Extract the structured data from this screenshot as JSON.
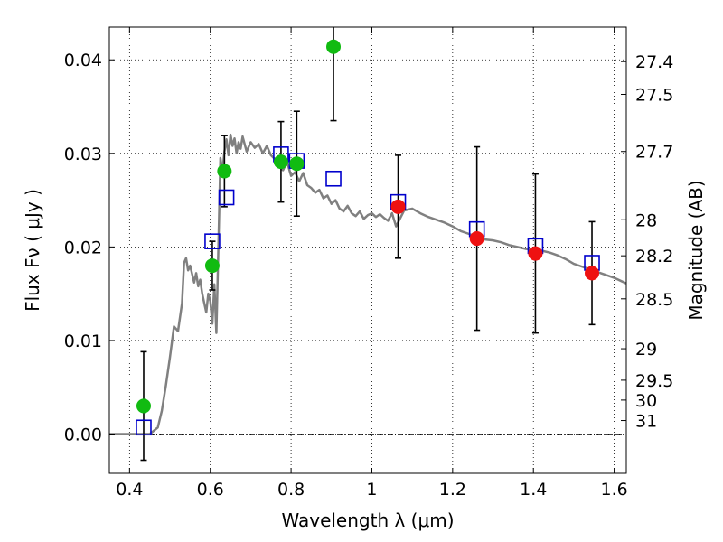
{
  "chart_data": {
    "type": "scatter",
    "xlabel": "Wavelength  λ (μm)",
    "ylabel": "Flux  Fν  ( μJy )",
    "ylabel_right": "Magnitude (AB)",
    "xlim": [
      0.35,
      1.63
    ],
    "ylim": [
      -0.0042,
      0.0435
    ],
    "x_ticks": [
      0.4,
      0.6,
      0.8,
      1.0,
      1.2,
      1.4,
      1.6
    ],
    "x_tick_labels": [
      "0.4",
      "0.6",
      "0.8",
      "1",
      "1.2",
      "1.4",
      "1.6"
    ],
    "y_ticks": [
      0.0,
      0.01,
      0.02,
      0.03,
      0.04
    ],
    "y_tick_labels": [
      "0.00",
      "0.01",
      "0.02",
      "0.03",
      "0.04"
    ],
    "right_ticks": [
      {
        "label": "27.4",
        "mag": 27.4
      },
      {
        "label": "27.5",
        "mag": 27.5
      },
      {
        "label": "27.7",
        "mag": 27.7
      },
      {
        "label": "28",
        "mag": 28.0
      },
      {
        "label": "28.2",
        "mag": 28.2
      },
      {
        "label": "28.5",
        "mag": 28.5
      },
      {
        "label": "29",
        "mag": 29.0
      },
      {
        "label": "29.5",
        "mag": 29.5
      },
      {
        "label": "30",
        "mag": 30.0
      },
      {
        "label": "31",
        "mag": 31.0
      }
    ],
    "grid": true,
    "zero_line": true,
    "colors": {
      "green": "#11bb11",
      "red": "#ee1111",
      "blue": "#0000cc",
      "model": "#808080",
      "errorbar": "#000000"
    },
    "series": [
      {
        "marker": "circle-green",
        "points": [
          {
            "x": 0.435,
            "y": 0.003,
            "yerr_low": 0.0058,
            "yerr_high": 0.0058
          },
          {
            "x": 0.605,
            "y": 0.018,
            "yerr_low": 0.0026,
            "yerr_high": 0.0026
          },
          {
            "x": 0.635,
            "y": 0.0281,
            "yerr_low": 0.0038,
            "yerr_high": 0.0038
          },
          {
            "x": 0.775,
            "y": 0.0291,
            "yerr_low": 0.0043,
            "yerr_high": 0.0043
          },
          {
            "x": 0.814,
            "y": 0.0289,
            "yerr_low": 0.0056,
            "yerr_high": 0.0056
          },
          {
            "x": 0.905,
            "y": 0.0414,
            "yerr_low": 0.0079,
            "yerr_high": 0.0079
          }
        ]
      },
      {
        "marker": "circle-red",
        "points": [
          {
            "x": 1.065,
            "y": 0.0243,
            "yerr_low": 0.0055,
            "yerr_high": 0.0055
          },
          {
            "x": 1.26,
            "y": 0.0209,
            "yerr_low": 0.0098,
            "yerr_high": 0.0098
          },
          {
            "x": 1.405,
            "y": 0.0193,
            "yerr_low": 0.0085,
            "yerr_high": 0.0085
          },
          {
            "x": 1.545,
            "y": 0.0172,
            "yerr_low": 0.0055,
            "yerr_high": 0.0055
          }
        ]
      },
      {
        "marker": "square-blue",
        "points": [
          {
            "x": 0.435,
            "y": 0.0007
          },
          {
            "x": 0.605,
            "y": 0.0206
          },
          {
            "x": 0.64,
            "y": 0.0253
          },
          {
            "x": 0.775,
            "y": 0.0299
          },
          {
            "x": 0.814,
            "y": 0.0292
          },
          {
            "x": 0.905,
            "y": 0.0273
          },
          {
            "x": 1.065,
            "y": 0.0248
          },
          {
            "x": 1.26,
            "y": 0.0219
          },
          {
            "x": 1.405,
            "y": 0.0201
          },
          {
            "x": 1.545,
            "y": 0.0183
          }
        ]
      }
    ],
    "model_curve": {
      "x": [
        0.35,
        0.45,
        0.47,
        0.48,
        0.49,
        0.5,
        0.51,
        0.52,
        0.53,
        0.535,
        0.54,
        0.545,
        0.55,
        0.56,
        0.565,
        0.57,
        0.575,
        0.58,
        0.585,
        0.59,
        0.595,
        0.6,
        0.605,
        0.61,
        0.615,
        0.62,
        0.625,
        0.63,
        0.635,
        0.64,
        0.645,
        0.65,
        0.655,
        0.66,
        0.665,
        0.67,
        0.675,
        0.68,
        0.69,
        0.7,
        0.71,
        0.72,
        0.73,
        0.74,
        0.75,
        0.76,
        0.77,
        0.78,
        0.79,
        0.8,
        0.81,
        0.82,
        0.83,
        0.84,
        0.85,
        0.86,
        0.87,
        0.88,
        0.89,
        0.9,
        0.91,
        0.92,
        0.93,
        0.94,
        0.95,
        0.96,
        0.97,
        0.98,
        0.99,
        1.0,
        1.01,
        1.02,
        1.03,
        1.04,
        1.05,
        1.06,
        1.08,
        1.1,
        1.12,
        1.14,
        1.16,
        1.18,
        1.2,
        1.22,
        1.24,
        1.26,
        1.28,
        1.3,
        1.32,
        1.34,
        1.36,
        1.38,
        1.4,
        1.42,
        1.44,
        1.46,
        1.48,
        1.5,
        1.52,
        1.54,
        1.56,
        1.58,
        1.6,
        1.62,
        1.63
      ],
      "y": [
        0.0,
        0.0,
        0.0007,
        0.0025,
        0.0052,
        0.0082,
        0.0115,
        0.011,
        0.014,
        0.0183,
        0.0188,
        0.0175,
        0.018,
        0.0162,
        0.0172,
        0.0158,
        0.0165,
        0.015,
        0.014,
        0.013,
        0.015,
        0.0142,
        0.0118,
        0.016,
        0.0108,
        0.02,
        0.0295,
        0.028,
        0.0302,
        0.0315,
        0.0298,
        0.032,
        0.0308,
        0.0316,
        0.03,
        0.0312,
        0.0305,
        0.0318,
        0.0302,
        0.0312,
        0.0306,
        0.031,
        0.03,
        0.0308,
        0.0298,
        0.0294,
        0.0286,
        0.0282,
        0.0291,
        0.0276,
        0.028,
        0.027,
        0.0279,
        0.0266,
        0.0263,
        0.0258,
        0.0261,
        0.0252,
        0.0255,
        0.0246,
        0.025,
        0.0241,
        0.0238,
        0.0244,
        0.0236,
        0.0233,
        0.0238,
        0.023,
        0.0234,
        0.0236,
        0.0232,
        0.0235,
        0.0231,
        0.0228,
        0.0236,
        0.0222,
        0.0239,
        0.0241,
        0.0236,
        0.0232,
        0.0229,
        0.0226,
        0.0222,
        0.0217,
        0.0214,
        0.0211,
        0.0208,
        0.0207,
        0.0205,
        0.0202,
        0.02,
        0.0198,
        0.0197,
        0.0196,
        0.0194,
        0.0191,
        0.0187,
        0.0182,
        0.0179,
        0.0176,
        0.0173,
        0.017,
        0.0167,
        0.0163,
        0.0161
      ]
    }
  }
}
